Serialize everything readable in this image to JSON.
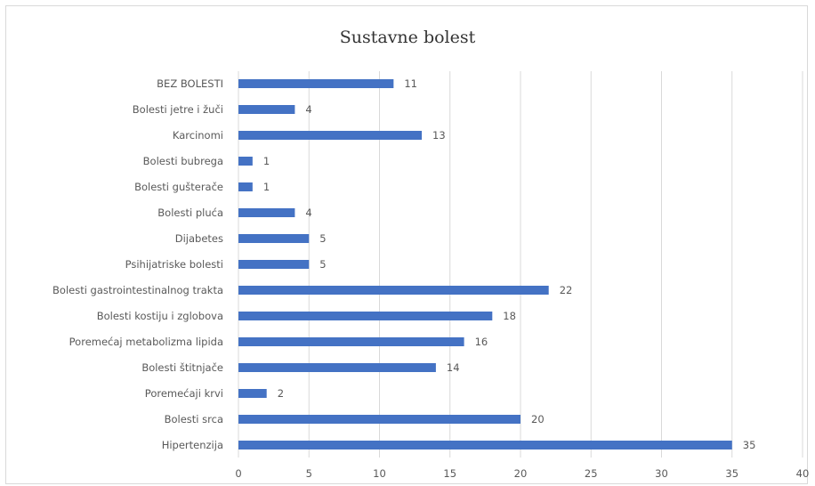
{
  "chart_data": {
    "type": "bar",
    "orientation": "horizontal",
    "title": "Sustavne bolest",
    "categories": [
      "BEZ BOLESTI",
      "Bolesti jetre i žuči",
      "Karcinomi",
      "Bolesti bubrega",
      "Bolesti gušterače",
      "Bolesti pluća",
      "Dijabetes",
      "Psihijatriske bolesti",
      "Bolesti gastrointestinalnog trakta",
      "Bolesti kostiju i zglobova",
      "Poremećaj metabolizma lipida",
      "Bolesti štitnjače",
      "Poremećaji krvi",
      "Bolesti srca",
      "Hipertenzija"
    ],
    "values": [
      11,
      4,
      13,
      1,
      1,
      4,
      5,
      5,
      22,
      18,
      16,
      14,
      2,
      20,
      35
    ],
    "xlim": [
      0,
      40
    ],
    "xticks": [
      "0",
      "5",
      "10",
      "15",
      "20",
      "25",
      "30",
      "35",
      "40"
    ],
    "grid": "vertical",
    "data_labels": true,
    "bar_color": "#4472c4"
  }
}
